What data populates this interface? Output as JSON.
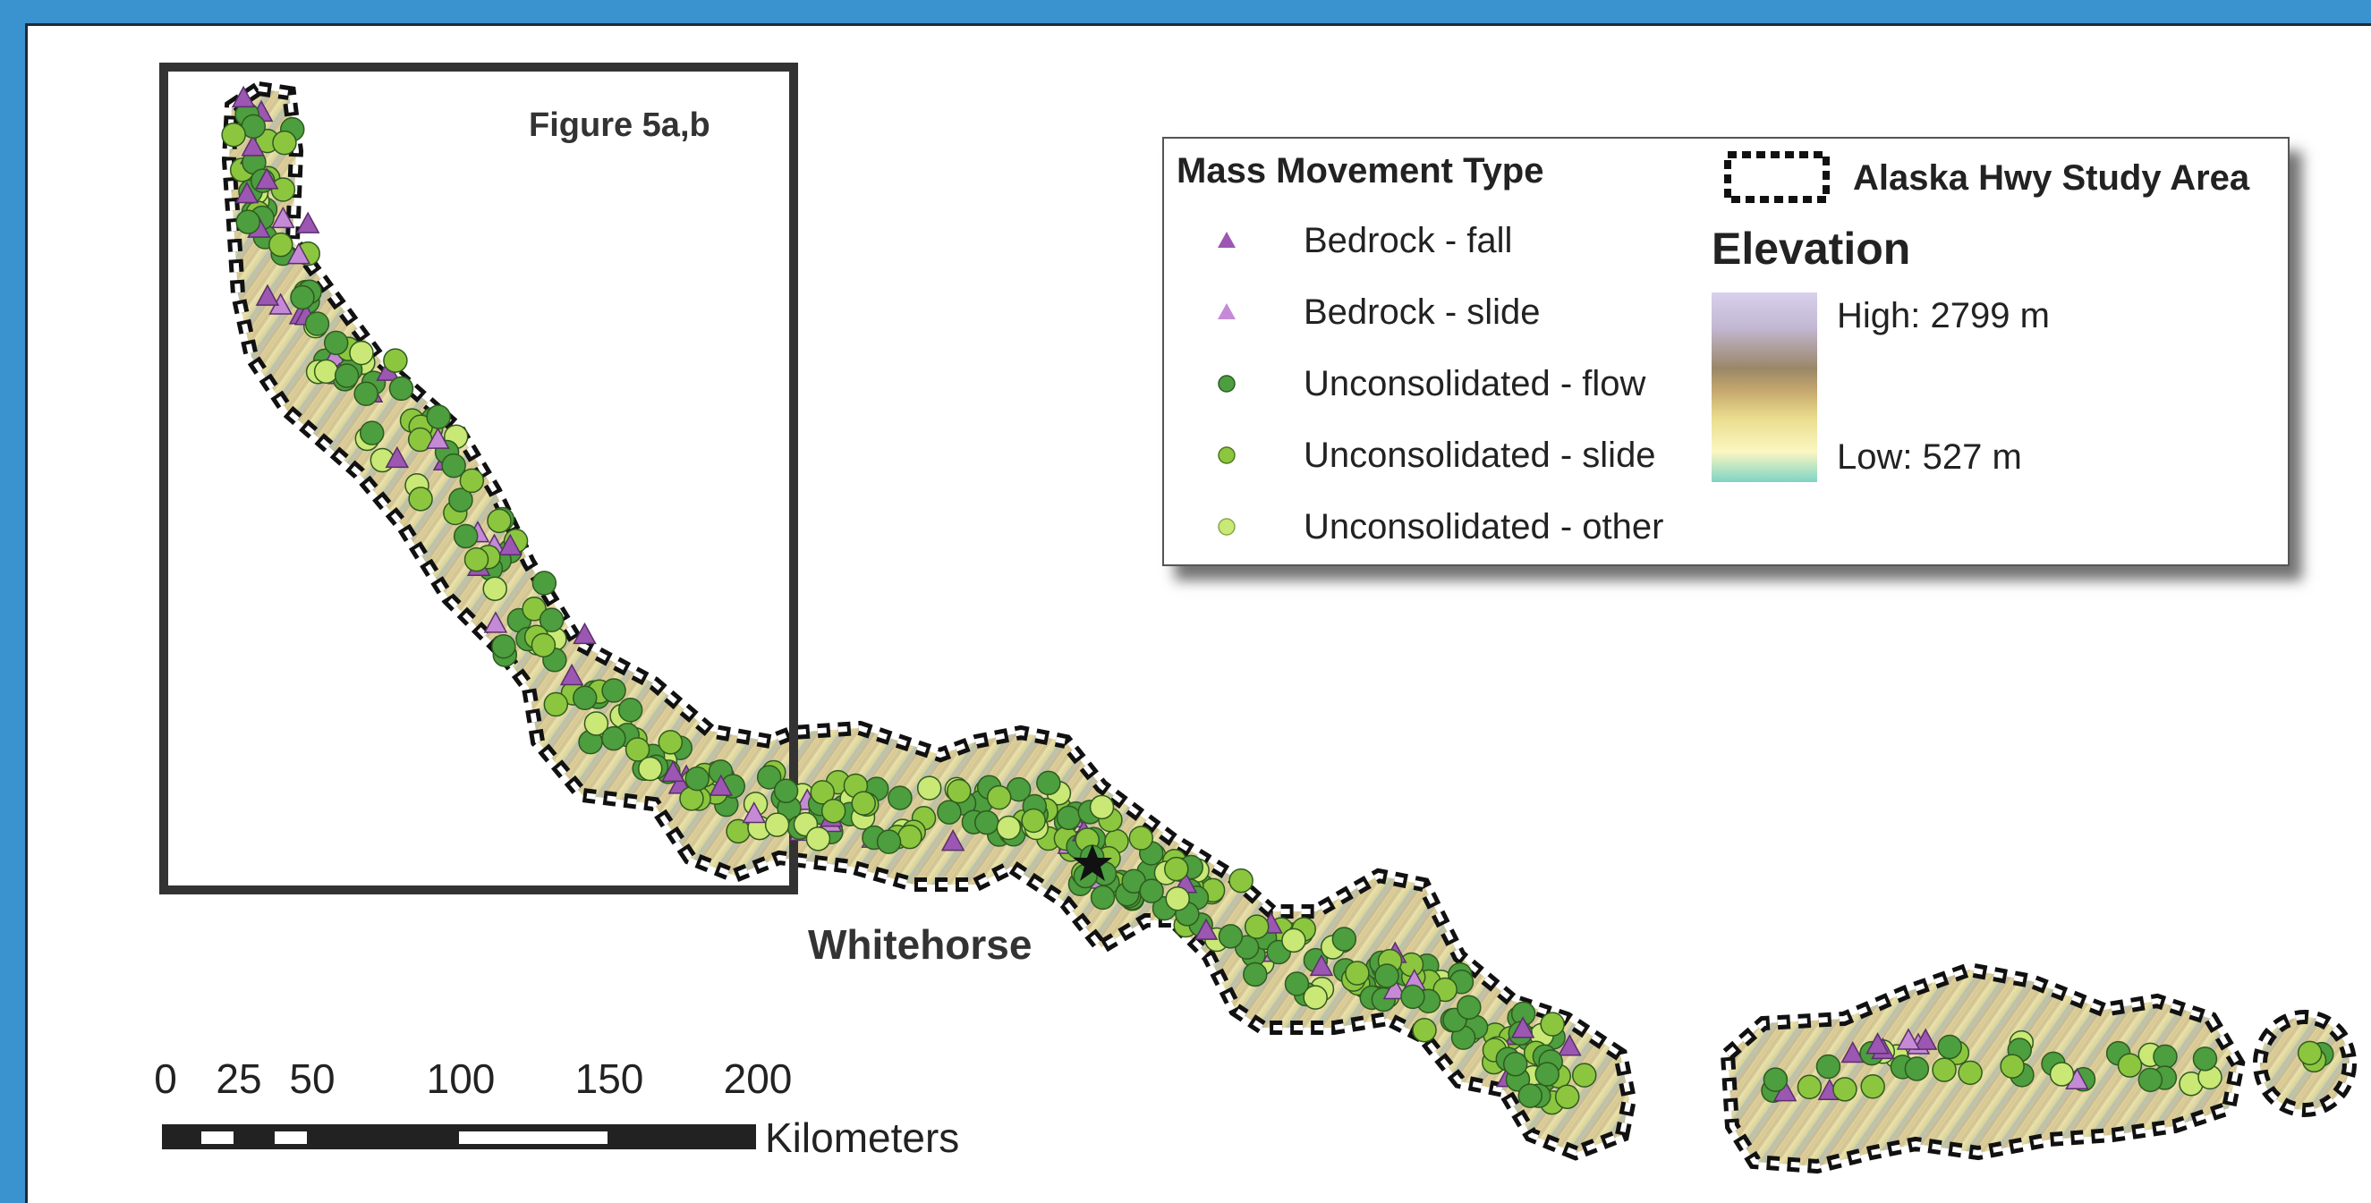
{
  "inset": {
    "label": "Figure 5a,b"
  },
  "city": {
    "name": "Whitehorse"
  },
  "legend": {
    "title": "Mass Movement Type",
    "items": [
      {
        "label": "Bedrock - fall",
        "symbol": "triangle",
        "color": "#9b57b2"
      },
      {
        "label": "Bedrock - slide",
        "symbol": "triangle",
        "color": "#c58ad6"
      },
      {
        "label": "Unconsolidated - flow",
        "symbol": "circle",
        "color": "#4c9e3f"
      },
      {
        "label": "Unconsolidated - slide",
        "symbol": "circle",
        "color": "#8cc63f"
      },
      {
        "label": "Unconsolidated - other",
        "symbol": "circle",
        "color": "#c9e875"
      }
    ],
    "study_area_label": "Alaska Hwy Study Area",
    "elevation_title": "Elevation",
    "high_label": "High: 2799 m",
    "low_label": "Low: 527 m"
  },
  "scale": {
    "ticks": [
      "0",
      "25",
      "50",
      "100",
      "150",
      "200"
    ],
    "tick_values_km": [
      0,
      25,
      50,
      100,
      150,
      200
    ],
    "unit": "Kilometers"
  },
  "colors": {
    "background_frame": "#3a93cf",
    "study_boundary": "#111111",
    "terrain_low": "#f3ecb4",
    "terrain_high": "#b9a27a"
  }
}
